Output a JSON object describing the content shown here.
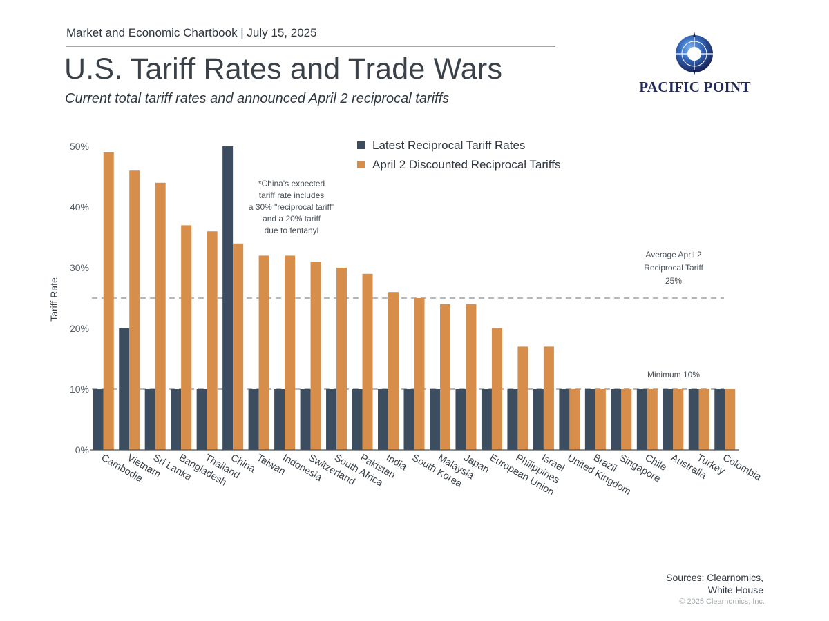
{
  "header": {
    "chartbook": "Market and Economic Chartbook | July 15, 2025",
    "title": "U.S. Tariff Rates and Trade Wars",
    "subtitle": "Current total tariff rates and announced April 2 reciprocal tariffs"
  },
  "logo": {
    "name": "PACIFIC POINT",
    "icon": "compass-ring-icon"
  },
  "footer": {
    "sources_line1": "Sources: Clearnomics,",
    "sources_line2": "White House",
    "copyright": "© 2025 Clearnomics, Inc."
  },
  "colors": {
    "latest": "#3b4d5f",
    "april2": "#d68e4a",
    "refline": "#8a8f93"
  },
  "chart_data": {
    "type": "bar",
    "title": "U.S. Tariff Rates and Trade Wars",
    "xlabel": "",
    "ylabel": "Tariff Rate",
    "ylim": [
      0,
      50
    ],
    "yticks": [
      0,
      10,
      20,
      30,
      40,
      50
    ],
    "ytick_labels": [
      "0%",
      "10%",
      "20%",
      "30%",
      "40%",
      "50%"
    ],
    "grid": false,
    "legend_position": "top-center",
    "categories": [
      "Cambodia",
      "Vietnam",
      "Sri Lanka",
      "Bangladesh",
      "Thailand",
      "China",
      "Taiwan",
      "Indonesia",
      "Switzerland",
      "South Africa",
      "Pakistan",
      "India",
      "South Korea",
      "Malaysia",
      "Japan",
      "European Union",
      "Philippines",
      "Israel",
      "United Kingdom",
      "Brazil",
      "Singapore",
      "Chile",
      "Australia",
      "Turkey",
      "Colombia"
    ],
    "series": [
      {
        "name": "Latest Reciprocal Tariff Rates",
        "values": [
          10,
          20,
          10,
          10,
          10,
          50,
          10,
          10,
          10,
          10,
          10,
          10,
          10,
          10,
          10,
          10,
          10,
          10,
          10,
          10,
          10,
          10,
          10,
          10,
          10
        ]
      },
      {
        "name": "April 2 Discounted Reciprocal Tariffs",
        "values": [
          49,
          46,
          44,
          37,
          36,
          34,
          32,
          32,
          31,
          30,
          29,
          26,
          25,
          24,
          24,
          20,
          17,
          17,
          10,
          10,
          10,
          10,
          10,
          10,
          10
        ]
      }
    ],
    "reference_lines": [
      {
        "value": 25,
        "label_lines": [
          "Average April 2",
          "Reciprocal Tariff",
          "25%"
        ]
      },
      {
        "value": 10,
        "label_lines": [
          "Minimum 10%"
        ]
      }
    ],
    "annotations": [
      {
        "target": "China",
        "lines": [
          "*China's expected",
          "tariff rate includes",
          "a 30% \"reciprocal tariff\"",
          "and a 20% tariff",
          "due to fentanyl"
        ]
      }
    ]
  }
}
